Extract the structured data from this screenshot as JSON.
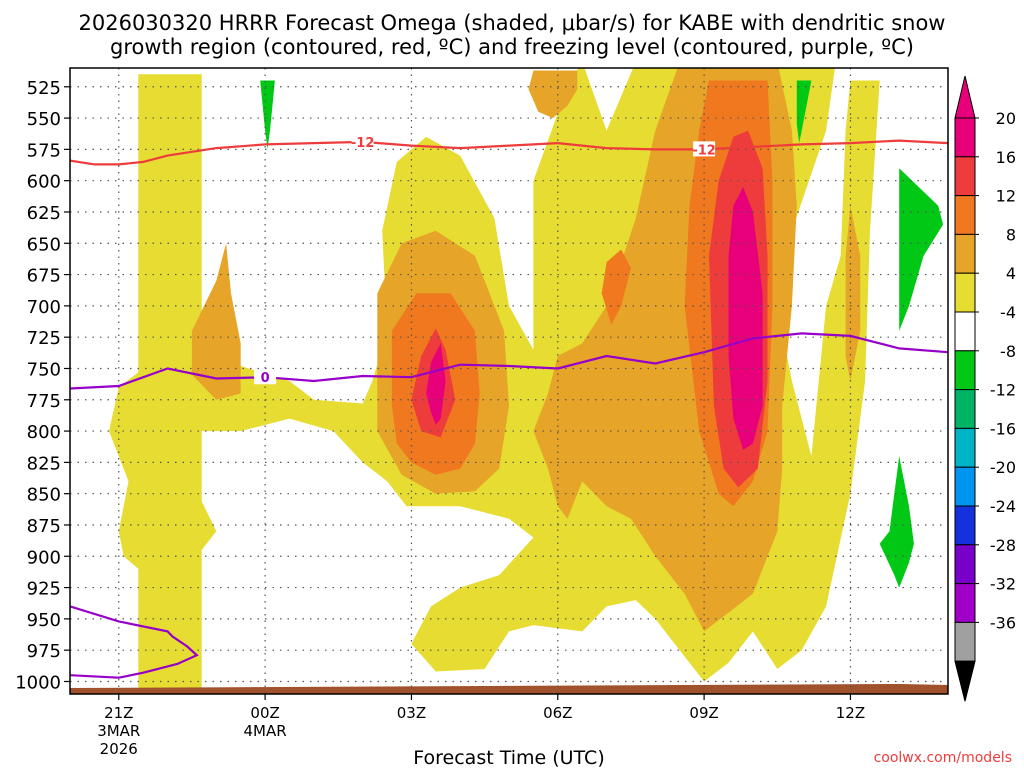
{
  "chart_data": {
    "type": "heatmap",
    "title_line1": "2026030320 HRRR Forecast Omega (shaded, μbar/s) for KABE with dendritic snow",
    "title_line2": "growth region (contoured, red, ºC) and freezing level (contoured, purple, ºC)",
    "xlabel": "Forecast Time (UTC)",
    "credit": "coolwx.com/models",
    "x_ticks": [
      {
        "hour": -3,
        "label": "21Z",
        "sub1": "3MAR",
        "sub2": "2026"
      },
      {
        "hour": 0,
        "label": "00Z",
        "sub1": "4MAR",
        "sub2": ""
      },
      {
        "hour": 3,
        "label": "03Z",
        "sub1": "",
        "sub2": ""
      },
      {
        "hour": 6,
        "label": "06Z",
        "sub1": "",
        "sub2": ""
      },
      {
        "hour": 9,
        "label": "09Z",
        "sub1": "",
        "sub2": ""
      },
      {
        "hour": 12,
        "label": "12Z",
        "sub1": "",
        "sub2": ""
      }
    ],
    "x_range_hours": [
      -4,
      14
    ],
    "y_levels": [
      525,
      550,
      575,
      600,
      625,
      650,
      675,
      700,
      725,
      750,
      775,
      800,
      825,
      850,
      875,
      900,
      925,
      950,
      975,
      1000
    ],
    "y_range_hpa": [
      510,
      1010
    ],
    "colorbar": {
      "labels": [
        "20",
        "16",
        "12",
        "8",
        "4",
        "-4",
        "-8",
        "-12",
        "-16",
        "-20",
        "-24",
        "-28",
        "-32",
        "-36"
      ],
      "bins": [
        {
          "color": "#e8007a"
        },
        {
          "color": "#ee3c3c"
        },
        {
          "color": "#f0781e"
        },
        {
          "color": "#e6a528"
        },
        {
          "color": "#e6dc32"
        },
        {
          "color": "#ffffff"
        },
        {
          "color": "#00c814"
        },
        {
          "color": "#00b464"
        },
        {
          "color": "#00b4c8"
        },
        {
          "color": "#0096f0"
        },
        {
          "color": "#1432dc"
        },
        {
          "color": "#7800c8"
        },
        {
          "color": "#a000c8"
        },
        {
          "color": "#a0a0a0"
        }
      ],
      "top_color": "#e8007a",
      "bottom_color": "#000000"
    },
    "contours": {
      "dgz_label": "-12",
      "dgz_color": "#ee3c3c",
      "dgz_line": [
        {
          "h": -4.0,
          "p": 584
        },
        {
          "h": -3.5,
          "p": 587
        },
        {
          "h": -3.0,
          "p": 587
        },
        {
          "h": -2.5,
          "p": 585
        },
        {
          "h": -2.0,
          "p": 580
        },
        {
          "h": -1.0,
          "p": 574
        },
        {
          "h": 0.0,
          "p": 571
        },
        {
          "h": 1.0,
          "p": 570
        },
        {
          "h": 2.0,
          "p": 569
        },
        {
          "h": 3.0,
          "p": 572
        },
        {
          "h": 4.0,
          "p": 574
        },
        {
          "h": 5.0,
          "p": 572
        },
        {
          "h": 6.0,
          "p": 570
        },
        {
          "h": 7.0,
          "p": 574
        },
        {
          "h": 8.0,
          "p": 575
        },
        {
          "h": 9.0,
          "p": 575
        },
        {
          "h": 10.0,
          "p": 573
        },
        {
          "h": 11.0,
          "p": 571
        },
        {
          "h": 12.0,
          "p": 570
        },
        {
          "h": 13.0,
          "p": 568
        },
        {
          "h": 14.0,
          "p": 570
        }
      ],
      "fzl_label": "0",
      "fzl_color": "#9600c8",
      "fzl_line": [
        {
          "h": -4.0,
          "p": 766
        },
        {
          "h": -3.0,
          "p": 764
        },
        {
          "h": -2.0,
          "p": 750
        },
        {
          "h": -1.0,
          "p": 758
        },
        {
          "h": 0.0,
          "p": 757
        },
        {
          "h": 1.0,
          "p": 760
        },
        {
          "h": 2.0,
          "p": 756
        },
        {
          "h": 3.0,
          "p": 757
        },
        {
          "h": 4.0,
          "p": 747
        },
        {
          "h": 5.0,
          "p": 748
        },
        {
          "h": 6.0,
          "p": 750
        },
        {
          "h": 7.0,
          "p": 740
        },
        {
          "h": 8.0,
          "p": 746
        },
        {
          "h": 9.0,
          "p": 737
        },
        {
          "h": 10.0,
          "p": 726
        },
        {
          "h": 11.0,
          "p": 722
        },
        {
          "h": 12.0,
          "p": 724
        },
        {
          "h": 13.0,
          "p": 734
        },
        {
          "h": 14.0,
          "p": 737
        }
      ],
      "fzl_low_line": [
        {
          "h": -4.0,
          "p": 940
        },
        {
          "h": -3.0,
          "p": 952
        },
        {
          "h": -2.0,
          "p": 960
        },
        {
          "h": -1.9,
          "p": 964
        },
        {
          "h": -1.6,
          "p": 972
        },
        {
          "h": -1.4,
          "p": 979
        },
        {
          "h": -1.8,
          "p": 986
        },
        {
          "h": -2.5,
          "p": 993
        },
        {
          "h": -3.0,
          "p": 997
        },
        {
          "h": -4.0,
          "p": 995
        }
      ]
    },
    "omega_regions": [
      {
        "level": 4,
        "pts": [
          [
            -2.6,
            1008
          ],
          [
            -1.3,
            1008
          ],
          [
            -1.3,
            515
          ],
          [
            -2.6,
            515
          ]
        ]
      },
      {
        "level": 4,
        "pts": [
          [
            -3.0,
            765
          ],
          [
            -2.0,
            735
          ],
          [
            -1.0,
            735
          ],
          [
            -0.5,
            748
          ],
          [
            0.5,
            760
          ],
          [
            1.0,
            775
          ],
          [
            2.0,
            778
          ],
          [
            2.2,
            760
          ],
          [
            2.5,
            720
          ],
          [
            2.4,
            640
          ],
          [
            2.7,
            585
          ],
          [
            3.3,
            565
          ],
          [
            4.0,
            580
          ],
          [
            4.7,
            630
          ],
          [
            5.0,
            700
          ],
          [
            5.5,
            735
          ],
          [
            5.5,
            600
          ],
          [
            6.2,
            525
          ],
          [
            6.5,
            505
          ],
          [
            7.0,
            560
          ],
          [
            7.6,
            505
          ],
          [
            11.7,
            505
          ],
          [
            11.5,
            560
          ],
          [
            10.8,
            640
          ],
          [
            10.5,
            700
          ],
          [
            10.8,
            760
          ],
          [
            11.2,
            820
          ],
          [
            11.5,
            700
          ],
          [
            11.8,
            660
          ],
          [
            11.9,
            560
          ],
          [
            12.0,
            520
          ],
          [
            12.6,
            520
          ],
          [
            12.4,
            640
          ],
          [
            12.3,
            760
          ],
          [
            12.0,
            850
          ],
          [
            11.5,
            940
          ],
          [
            11.0,
            975
          ],
          [
            10.5,
            990
          ],
          [
            10.0,
            960
          ],
          [
            9.5,
            985
          ],
          [
            9.0,
            1000
          ],
          [
            8.5,
            975
          ],
          [
            8.0,
            950
          ],
          [
            7.6,
            935
          ],
          [
            7.0,
            940
          ],
          [
            6.5,
            960
          ],
          [
            5.5,
            955
          ],
          [
            5.0,
            960
          ],
          [
            4.5,
            990
          ],
          [
            3.5,
            992
          ],
          [
            3.0,
            970
          ],
          [
            3.4,
            940
          ],
          [
            4.0,
            925
          ],
          [
            4.8,
            915
          ],
          [
            5.5,
            885
          ],
          [
            5.0,
            870
          ],
          [
            4.0,
            860
          ],
          [
            2.9,
            860
          ],
          [
            2.5,
            840
          ],
          [
            2.0,
            825
          ],
          [
            1.4,
            800
          ],
          [
            0.5,
            790
          ],
          [
            -0.5,
            800
          ],
          [
            -1.3,
            800
          ],
          [
            -1.5,
            840
          ],
          [
            -1.0,
            880
          ],
          [
            -1.5,
            905
          ],
          [
            -2.0,
            915
          ],
          [
            -2.6,
            910
          ],
          [
            -2.9,
            900
          ],
          [
            -3.0,
            880
          ],
          [
            -2.8,
            840
          ],
          [
            -3.2,
            800
          ]
        ]
      },
      {
        "level": 8,
        "pts": [
          [
            2.3,
            800
          ],
          [
            2.3,
            690
          ],
          [
            2.8,
            650
          ],
          [
            3.5,
            640
          ],
          [
            4.3,
            660
          ],
          [
            4.9,
            720
          ],
          [
            5.0,
            780
          ],
          [
            4.8,
            830
          ],
          [
            4.3,
            848
          ],
          [
            3.5,
            850
          ],
          [
            2.8,
            835
          ]
        ]
      },
      {
        "level": 8,
        "pts": [
          [
            5.5,
            800
          ],
          [
            5.8,
            770
          ],
          [
            6.0,
            740
          ],
          [
            6.5,
            730
          ],
          [
            7.0,
            700
          ],
          [
            7.6,
            630
          ],
          [
            8.0,
            560
          ],
          [
            8.5,
            505
          ],
          [
            10.5,
            505
          ],
          [
            10.8,
            560
          ],
          [
            10.9,
            620
          ],
          [
            10.8,
            700
          ],
          [
            10.6,
            780
          ],
          [
            10.6,
            830
          ],
          [
            10.5,
            880
          ],
          [
            10.0,
            930
          ],
          [
            9.5,
            945
          ],
          [
            9.0,
            960
          ],
          [
            8.6,
            930
          ],
          [
            8.0,
            900
          ],
          [
            7.5,
            870
          ],
          [
            7.0,
            860
          ],
          [
            6.5,
            840
          ],
          [
            6.2,
            870
          ],
          [
            6.0,
            860
          ],
          [
            5.8,
            830
          ]
        ]
      },
      {
        "level": 8,
        "pts": [
          [
            5.4,
            527
          ],
          [
            5.5,
            512
          ],
          [
            6.4,
            512
          ],
          [
            6.4,
            527
          ],
          [
            6.2,
            540
          ],
          [
            5.9,
            550
          ],
          [
            5.6,
            545
          ]
        ]
      },
      {
        "level": 8,
        "pts": [
          [
            -1.5,
            755
          ],
          [
            -1.5,
            720
          ],
          [
            -1.0,
            680
          ],
          [
            -0.8,
            650
          ],
          [
            -0.7,
            690
          ],
          [
            -0.5,
            730
          ],
          [
            -0.5,
            770
          ],
          [
            -1.0,
            775
          ]
        ]
      },
      {
        "level": 8,
        "pts": [
          [
            11.9,
            700
          ],
          [
            11.9,
            660
          ],
          [
            12.0,
            620
          ],
          [
            12.2,
            660
          ],
          [
            12.2,
            720
          ],
          [
            12.0,
            760
          ],
          [
            11.9,
            740
          ]
        ]
      },
      {
        "level": 12,
        "pts": [
          [
            2.6,
            780
          ],
          [
            2.6,
            720
          ],
          [
            3.1,
            690
          ],
          [
            3.8,
            690
          ],
          [
            4.3,
            720
          ],
          [
            4.4,
            770
          ],
          [
            4.3,
            810
          ],
          [
            4.0,
            830
          ],
          [
            3.5,
            835
          ],
          [
            3.0,
            825
          ],
          [
            2.7,
            810
          ]
        ]
      },
      {
        "level": 12,
        "pts": [
          [
            6.9,
            690
          ],
          [
            7.0,
            665
          ],
          [
            7.3,
            655
          ],
          [
            7.5,
            670
          ],
          [
            7.3,
            700
          ],
          [
            7.1,
            715
          ]
        ]
      },
      {
        "level": 12,
        "pts": [
          [
            8.7,
            620
          ],
          [
            8.9,
            560
          ],
          [
            9.1,
            520
          ],
          [
            10.3,
            520
          ],
          [
            10.4,
            600
          ],
          [
            10.4,
            700
          ],
          [
            10.3,
            800
          ],
          [
            10.0,
            840
          ],
          [
            9.6,
            860
          ],
          [
            9.3,
            850
          ],
          [
            8.9,
            800
          ],
          [
            8.6,
            700
          ]
        ]
      },
      {
        "level": 16,
        "pts": [
          [
            3.0,
            775
          ],
          [
            3.2,
            740
          ],
          [
            3.5,
            718
          ],
          [
            3.7,
            735
          ],
          [
            3.9,
            775
          ],
          [
            3.6,
            805
          ],
          [
            3.2,
            800
          ]
        ]
      },
      {
        "level": 16,
        "pts": [
          [
            9.1,
            660
          ],
          [
            9.3,
            600
          ],
          [
            9.6,
            565
          ],
          [
            9.9,
            560
          ],
          [
            10.2,
            590
          ],
          [
            10.3,
            660
          ],
          [
            10.3,
            760
          ],
          [
            10.1,
            830
          ],
          [
            9.7,
            845
          ],
          [
            9.4,
            830
          ],
          [
            9.2,
            780
          ]
        ]
      },
      {
        "level": 20,
        "pts": [
          [
            3.3,
            770
          ],
          [
            3.4,
            745
          ],
          [
            3.6,
            730
          ],
          [
            3.7,
            760
          ],
          [
            3.6,
            790
          ],
          [
            3.5,
            795
          ],
          [
            3.4,
            785
          ]
        ]
      },
      {
        "level": 20,
        "pts": [
          [
            9.5,
            660
          ],
          [
            9.6,
            620
          ],
          [
            9.8,
            605
          ],
          [
            10.0,
            625
          ],
          [
            10.2,
            690
          ],
          [
            10.2,
            780
          ],
          [
            10.0,
            810
          ],
          [
            9.8,
            815
          ],
          [
            9.6,
            790
          ],
          [
            9.5,
            740
          ]
        ]
      },
      {
        "level": -4,
        "pts": [
          [
            -0.1,
            520
          ],
          [
            0.2,
            520
          ],
          [
            0.1,
            560
          ],
          [
            0.05,
            575
          ],
          [
            0.0,
            560
          ]
        ]
      },
      {
        "level": -4,
        "pts": [
          [
            10.9,
            520
          ],
          [
            11.2,
            520
          ],
          [
            11.0,
            560
          ],
          [
            10.95,
            570
          ],
          [
            10.9,
            555
          ]
        ]
      },
      {
        "level": -4,
        "pts": [
          [
            13.0,
            590
          ],
          [
            13.8,
            620
          ],
          [
            13.9,
            635
          ],
          [
            13.5,
            660
          ],
          [
            13.2,
            700
          ],
          [
            13.0,
            720
          ]
        ]
      },
      {
        "level": -4,
        "pts": [
          [
            13.0,
            820
          ],
          [
            12.9,
            850
          ],
          [
            12.8,
            880
          ],
          [
            12.6,
            890
          ],
          [
            12.9,
            915
          ],
          [
            13.0,
            925
          ],
          [
            13.2,
            905
          ],
          [
            13.3,
            890
          ],
          [
            13.2,
            860
          ]
        ]
      }
    ]
  }
}
